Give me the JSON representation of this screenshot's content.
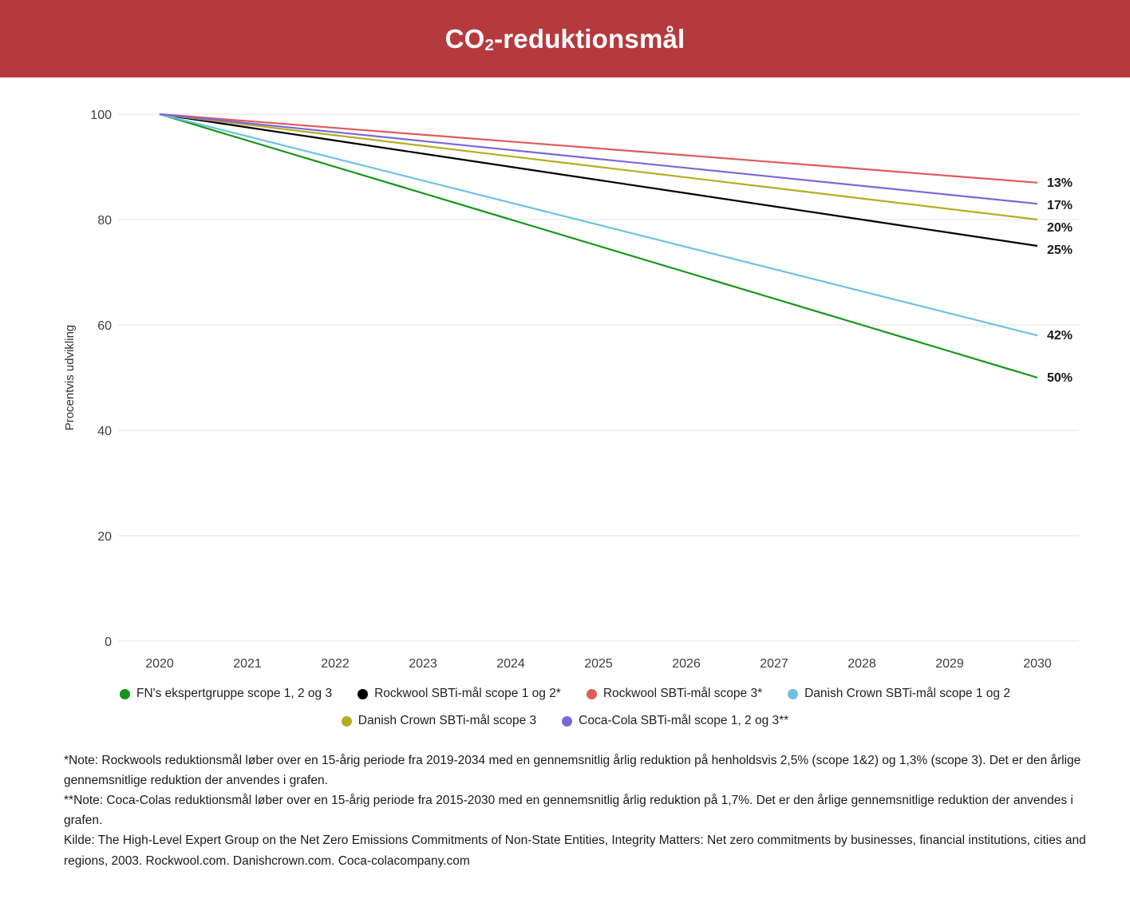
{
  "header": {
    "title_pre": "CO",
    "title_sub": "2",
    "title_post": "-reduktionsmål",
    "background": "#b53a3e"
  },
  "chart_data": {
    "type": "line",
    "title": "CO₂-reduktionsmål",
    "xlabel": "",
    "ylabel": "Procentvis udvikling",
    "x": [
      2020,
      2021,
      2022,
      2023,
      2024,
      2025,
      2026,
      2027,
      2028,
      2029,
      2030
    ],
    "ylim": [
      0,
      100
    ],
    "yticks": [
      0,
      20,
      40,
      60,
      80,
      100
    ],
    "grid": true,
    "legend_position": "bottom",
    "series": [
      {
        "name": "FN's ekspertgruppe scope 1, 2 og 3",
        "color": "#109618",
        "values": [
          100,
          95,
          90,
          85,
          80,
          75,
          70,
          65,
          60,
          55,
          50
        ],
        "end_label": "50%"
      },
      {
        "name": "Rockwool SBTi-mål scope 1 og 2*",
        "color": "#000000",
        "values": [
          100,
          97.5,
          95,
          92.5,
          90,
          87.5,
          85,
          82.5,
          80,
          77.5,
          75
        ],
        "end_label": "25%"
      },
      {
        "name": "Rockwool SBTi-mål scope 3*",
        "color": "#df5b5b",
        "values": [
          100,
          98.7,
          97.4,
          96.1,
          94.8,
          93.5,
          92.2,
          90.9,
          89.6,
          88.3,
          87
        ],
        "end_label": "13%"
      },
      {
        "name": "Danish Crown SBTi-mål scope 1 og 2",
        "color": "#6ec0e4",
        "values": [
          100,
          95.8,
          91.6,
          87.4,
          83.2,
          79,
          74.8,
          70.6,
          66.4,
          62.2,
          58
        ],
        "end_label": "42%"
      },
      {
        "name": "Danish Crown SBTi-mål scope 3",
        "color": "#b3ad21",
        "values": [
          100,
          98,
          96,
          94,
          92,
          90,
          88,
          86,
          84,
          82,
          80
        ],
        "end_label": "20%"
      },
      {
        "name": "Coca-Cola SBTi-mål scope 1, 2 og 3**",
        "color": "#7a68d9",
        "values": [
          100,
          98.3,
          96.6,
          94.9,
          93.2,
          91.5,
          89.8,
          88.1,
          86.4,
          84.7,
          83
        ],
        "end_label": "17%"
      }
    ]
  },
  "legend_rows": [
    [
      0,
      1,
      2,
      3
    ],
    [
      4,
      5
    ]
  ],
  "footnotes": [
    "*Note: Rockwools reduktionsmål løber over en 15-årig periode fra 2019-2034 med en gennemsnitlig årlig reduktion på henholdsvis 2,5% (scope 1&2) og 1,3% (scope 3). Det er den årlige gennemsnitlige reduktion der anvendes i grafen.",
    "**Note: Coca-Colas reduktionsmål løber over en 15-årig periode fra 2015-2030 med en gennemsnitlig årlig reduktion på 1,7%. Det er den årlige gennemsnitlige reduktion der anvendes i grafen.",
    "Kilde: The High-Level Expert Group on the Net Zero Emissions Commitments of Non-State Entities, Integrity Matters: Net zero commitments by businesses, financial institutions, cities and regions, 2003. Rockwool.com. Danishcrown.com. Coca-colacompany.com"
  ]
}
